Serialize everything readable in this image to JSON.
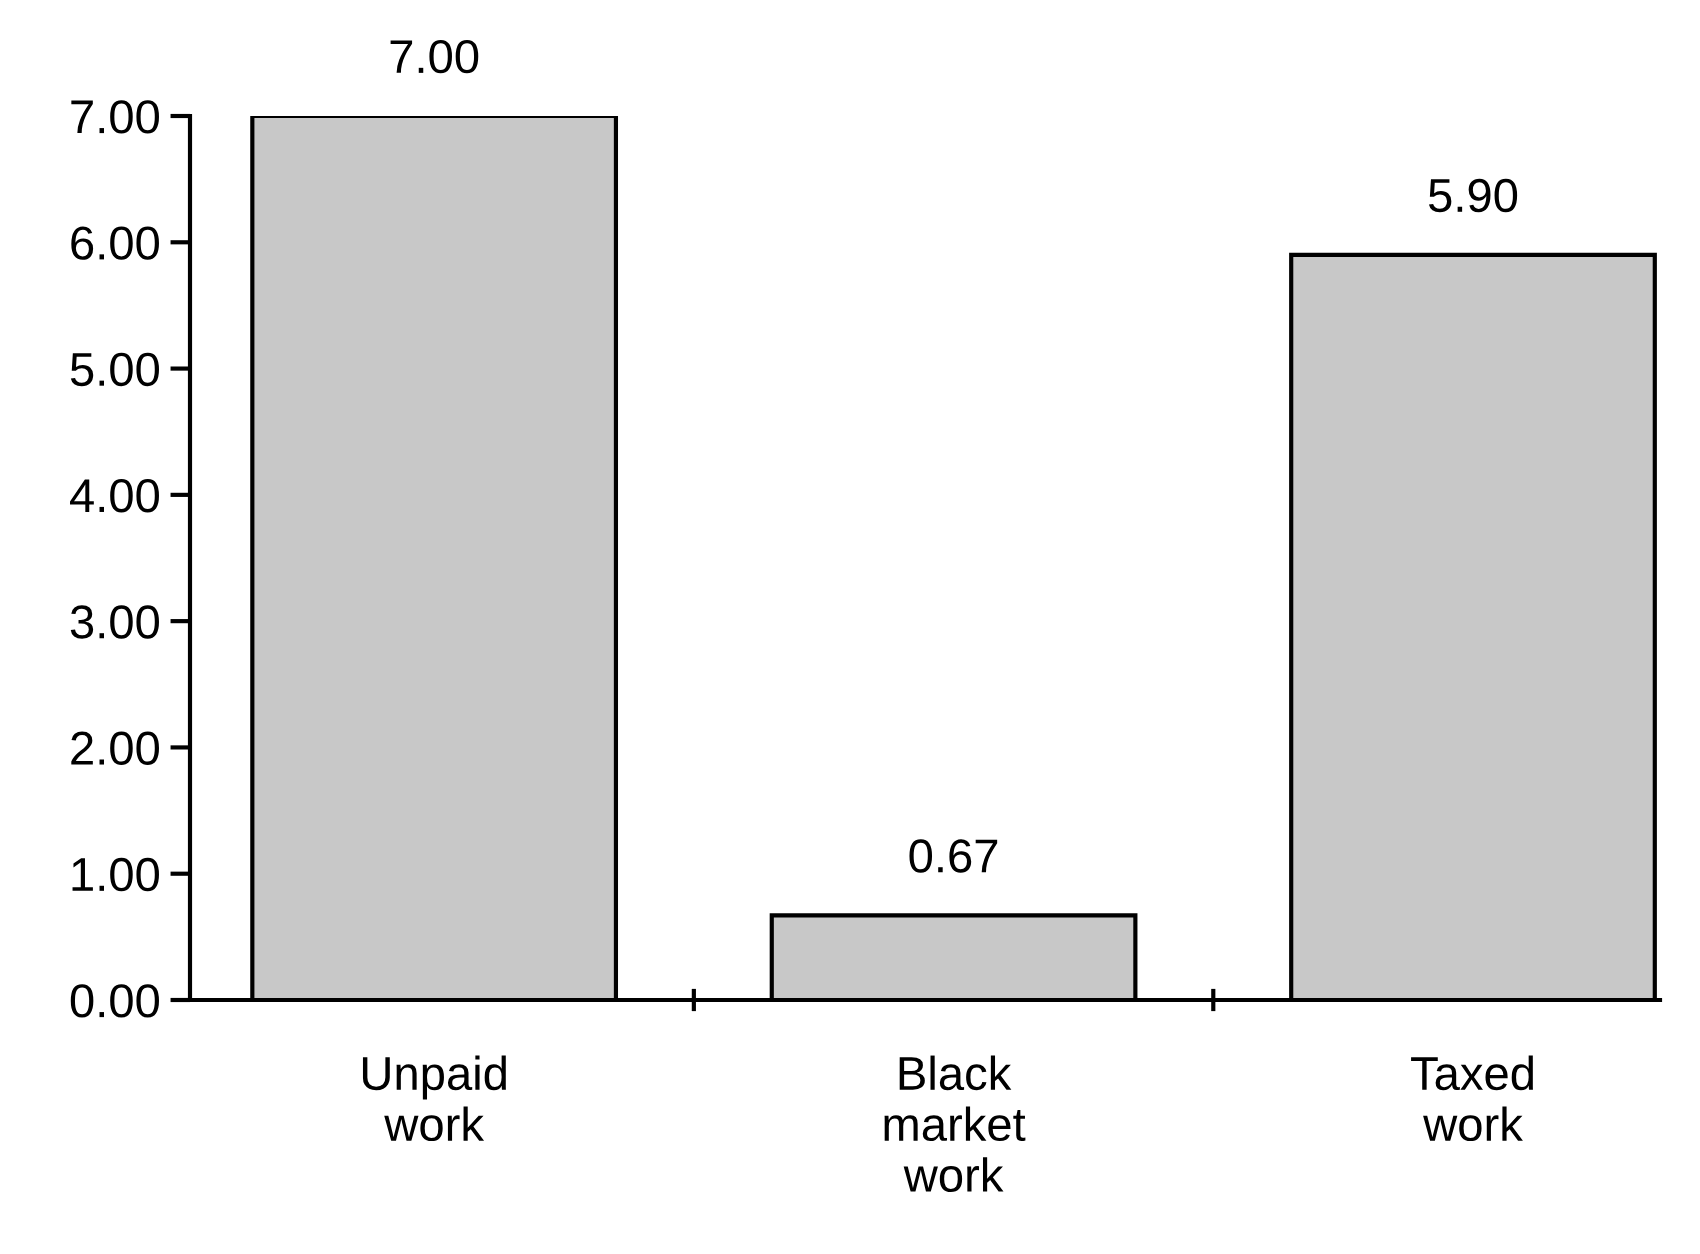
{
  "chart_data": {
    "type": "bar",
    "categories": [
      "Unpaid\nwork",
      "Black\nmarket\nwork",
      "Taxed\nwork"
    ],
    "values": [
      7.0,
      0.67,
      5.9
    ],
    "value_labels": [
      "7.00",
      "0.67",
      "5.90"
    ],
    "color": "#c8c8c8",
    "ylim": [
      0,
      7
    ],
    "yticks": [
      {
        "value": 0,
        "label": "0.00"
      },
      {
        "value": 1,
        "label": "1.00"
      },
      {
        "value": 2,
        "label": "2.00"
      },
      {
        "value": 3,
        "label": "3.00"
      },
      {
        "value": 4,
        "label": "4.00"
      },
      {
        "value": 5,
        "label": "5.00"
      },
      {
        "value": 6,
        "label": "6.00"
      },
      {
        "value": 7,
        "label": "7.00"
      }
    ],
    "grid": false,
    "legend": false
  }
}
